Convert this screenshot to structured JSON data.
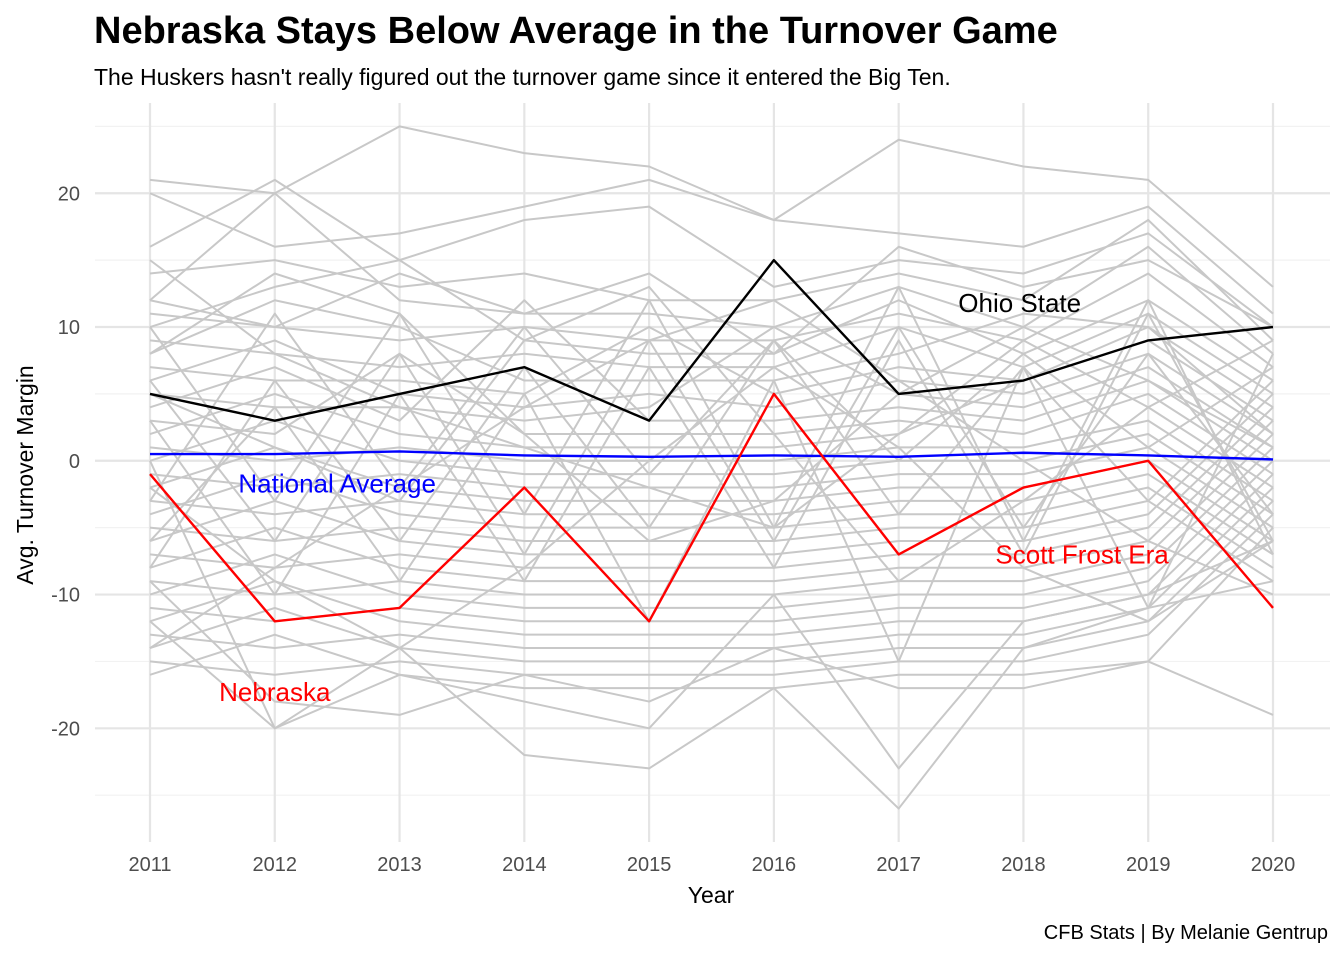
{
  "title": "Nebraska Stays Below Average in the Turnover Game",
  "subtitle": "The Huskers hasn't really figured out the turnover game since it entered the Big Ten.",
  "caption": "CFB Stats | By Melanie Gentrup",
  "chart_data": {
    "type": "line",
    "xlabel": "Year",
    "ylabel": "Avg. Turnover Margin",
    "x": [
      2011,
      2012,
      2013,
      2014,
      2015,
      2016,
      2017,
      2018,
      2019,
      2020
    ],
    "xlim": [
      2011,
      2020
    ],
    "ylim": [
      -28.5,
      26
    ],
    "yticks": [
      -20,
      -10,
      0,
      10,
      20
    ],
    "grid": true,
    "legend": "none",
    "background_series_color": "#c8c8c8",
    "background_series": [
      [
        21,
        20,
        25,
        23,
        22,
        18,
        24,
        22,
        21,
        13
      ],
      [
        20,
        16,
        17,
        19,
        21,
        18,
        17,
        16,
        19,
        11
      ],
      [
        16,
        21,
        15,
        18,
        19,
        13,
        15,
        14,
        17,
        10
      ],
      [
        14,
        15,
        13,
        14,
        12,
        12,
        14,
        12,
        18,
        9
      ],
      [
        12,
        20,
        12,
        11,
        11,
        10,
        13,
        10,
        16,
        8
      ],
      [
        11,
        10,
        9,
        10,
        9,
        9,
        11,
        9,
        14,
        7
      ],
      [
        10,
        13,
        15,
        9,
        8,
        8,
        12,
        8,
        12,
        6
      ],
      [
        9,
        8,
        7,
        8,
        7,
        7,
        10,
        7,
        11,
        5
      ],
      [
        8,
        12,
        10,
        6,
        6,
        6,
        8,
        11,
        10,
        4
      ],
      [
        7,
        6,
        6,
        5,
        10,
        5,
        7,
        6,
        9,
        3
      ],
      [
        6,
        9,
        5,
        4,
        5,
        4,
        6,
        5,
        8,
        2
      ],
      [
        5,
        4,
        4,
        3,
        4,
        10,
        5,
        4,
        7,
        1
      ],
      [
        4,
        7,
        3,
        12,
        3,
        3,
        4,
        3,
        6,
        0
      ],
      [
        3,
        2,
        8,
        2,
        2,
        2,
        3,
        2,
        5,
        -1
      ],
      [
        2,
        5,
        2,
        1,
        1,
        1,
        2,
        9,
        4,
        -2
      ],
      [
        1,
        0,
        1,
        0,
        0,
        0,
        1,
        1,
        3,
        -3
      ],
      [
        0,
        3,
        0,
        -1,
        -1,
        -1,
        0,
        0,
        2,
        -4
      ],
      [
        -1,
        -2,
        -1,
        -2,
        -2,
        -2,
        -1,
        -1,
        1,
        -5
      ],
      [
        -2,
        1,
        -2,
        -3,
        -3,
        -3,
        -2,
        -2,
        0,
        -6
      ],
      [
        -3,
        -4,
        -3,
        -4,
        -4,
        -4,
        -3,
        -3,
        -1,
        -7
      ],
      [
        -4,
        -1,
        -4,
        -5,
        -5,
        -5,
        -4,
        -4,
        -2,
        -8
      ],
      [
        -5,
        -6,
        -5,
        -6,
        -6,
        -6,
        -5,
        -5,
        -3,
        -9
      ],
      [
        -6,
        -3,
        -6,
        -7,
        -7,
        -7,
        -6,
        -6,
        -4,
        5
      ],
      [
        -7,
        -8,
        -7,
        -8,
        -8,
        -8,
        -7,
        -7,
        -5,
        4
      ],
      [
        -8,
        -5,
        -8,
        -9,
        -9,
        -9,
        -8,
        -8,
        -6,
        3
      ],
      [
        -9,
        -10,
        -9,
        -10,
        -10,
        -10,
        -9,
        -9,
        -7,
        2
      ],
      [
        -10,
        -7,
        -10,
        -11,
        -11,
        -11,
        -10,
        -10,
        -8,
        1
      ],
      [
        -11,
        -12,
        -11,
        -12,
        -12,
        -12,
        -11,
        -11,
        -9,
        0
      ],
      [
        -12,
        -9,
        -12,
        -13,
        -13,
        -13,
        -12,
        -12,
        -10,
        -1
      ],
      [
        -13,
        -14,
        -13,
        -14,
        -14,
        -14,
        -13,
        -13,
        -11,
        -2
      ],
      [
        -14,
        -11,
        -14,
        -15,
        -15,
        -15,
        -14,
        -14,
        -12,
        -3
      ],
      [
        -15,
        -16,
        -15,
        -16,
        -16,
        -16,
        -15,
        -15,
        -13,
        -4
      ],
      [
        -16,
        -13,
        -16,
        -17,
        -17,
        -17,
        -16,
        -16,
        -15,
        -5
      ],
      [
        -9,
        -18,
        -19,
        -16,
        -18,
        -14,
        -17,
        -17,
        -15,
        -19
      ],
      [
        -12,
        -20,
        -14,
        -22,
        -23,
        -17,
        -26,
        -14,
        -11,
        -9
      ],
      [
        0,
        -20,
        -16,
        -18,
        -20,
        -10,
        -23,
        -12,
        -10,
        -6
      ],
      [
        12,
        10,
        14,
        11,
        14,
        8,
        16,
        13,
        15,
        10
      ],
      [
        -8,
        6,
        -6,
        7,
        -5,
        9,
        -4,
        7,
        -3,
        6
      ],
      [
        6,
        -6,
        8,
        -7,
        9,
        -6,
        10,
        -5,
        8,
        -4
      ],
      [
        -3,
        11,
        -2,
        10,
        -1,
        9,
        0,
        8,
        1,
        7
      ],
      [
        10,
        -3,
        11,
        -4,
        12,
        -5,
        13,
        -6,
        12,
        -7
      ],
      [
        3,
        -10,
        5,
        -9,
        7,
        -8,
        9,
        -7,
        11,
        -6
      ],
      [
        -6,
        4,
        -9,
        5,
        -12,
        6,
        -15,
        7,
        -11,
        8
      ],
      [
        15,
        8,
        4,
        1,
        -2,
        -5,
        2,
        6,
        10,
        2
      ],
      [
        -14,
        -8,
        -2,
        4,
        9,
        12,
        6,
        0,
        -6,
        -10
      ],
      [
        8,
        14,
        11,
        2,
        -6,
        -3,
        5,
        10,
        6,
        1
      ],
      [
        -2,
        -9,
        -14,
        -8,
        0,
        7,
        1,
        -8,
        -12,
        -6
      ],
      [
        5,
        1,
        -3,
        9,
        13,
        2,
        -9,
        -3,
        4,
        9
      ]
    ],
    "series": [
      {
        "name": "National Average",
        "color": "#0000ff",
        "values": [
          0.5,
          0.5,
          0.7,
          0.4,
          0.3,
          0.4,
          0.3,
          0.6,
          0.4,
          0.1
        ]
      },
      {
        "name": "Ohio State",
        "color": "#000000",
        "values": [
          5,
          3,
          5,
          7,
          3,
          15,
          5,
          6,
          9,
          10
        ]
      },
      {
        "name": "Nebraska",
        "color": "#ff0000",
        "values": [
          -1,
          -12,
          -11,
          -2,
          -12,
          5,
          -7,
          -2,
          0,
          -11
        ]
      }
    ],
    "annotations": [
      {
        "text": "Ohio State",
        "x": 2017.97,
        "y": 11.8,
        "color": "#000000"
      },
      {
        "text": "National Average",
        "x": 2012.5,
        "y": -1.7,
        "color": "#0000ff"
      },
      {
        "text": "Scott Frost Era",
        "x": 2018.47,
        "y": -7,
        "color": "#ff0000"
      },
      {
        "text": "Nebraska",
        "x": 2012.0,
        "y": -17.3,
        "color": "#ff0000"
      }
    ]
  }
}
